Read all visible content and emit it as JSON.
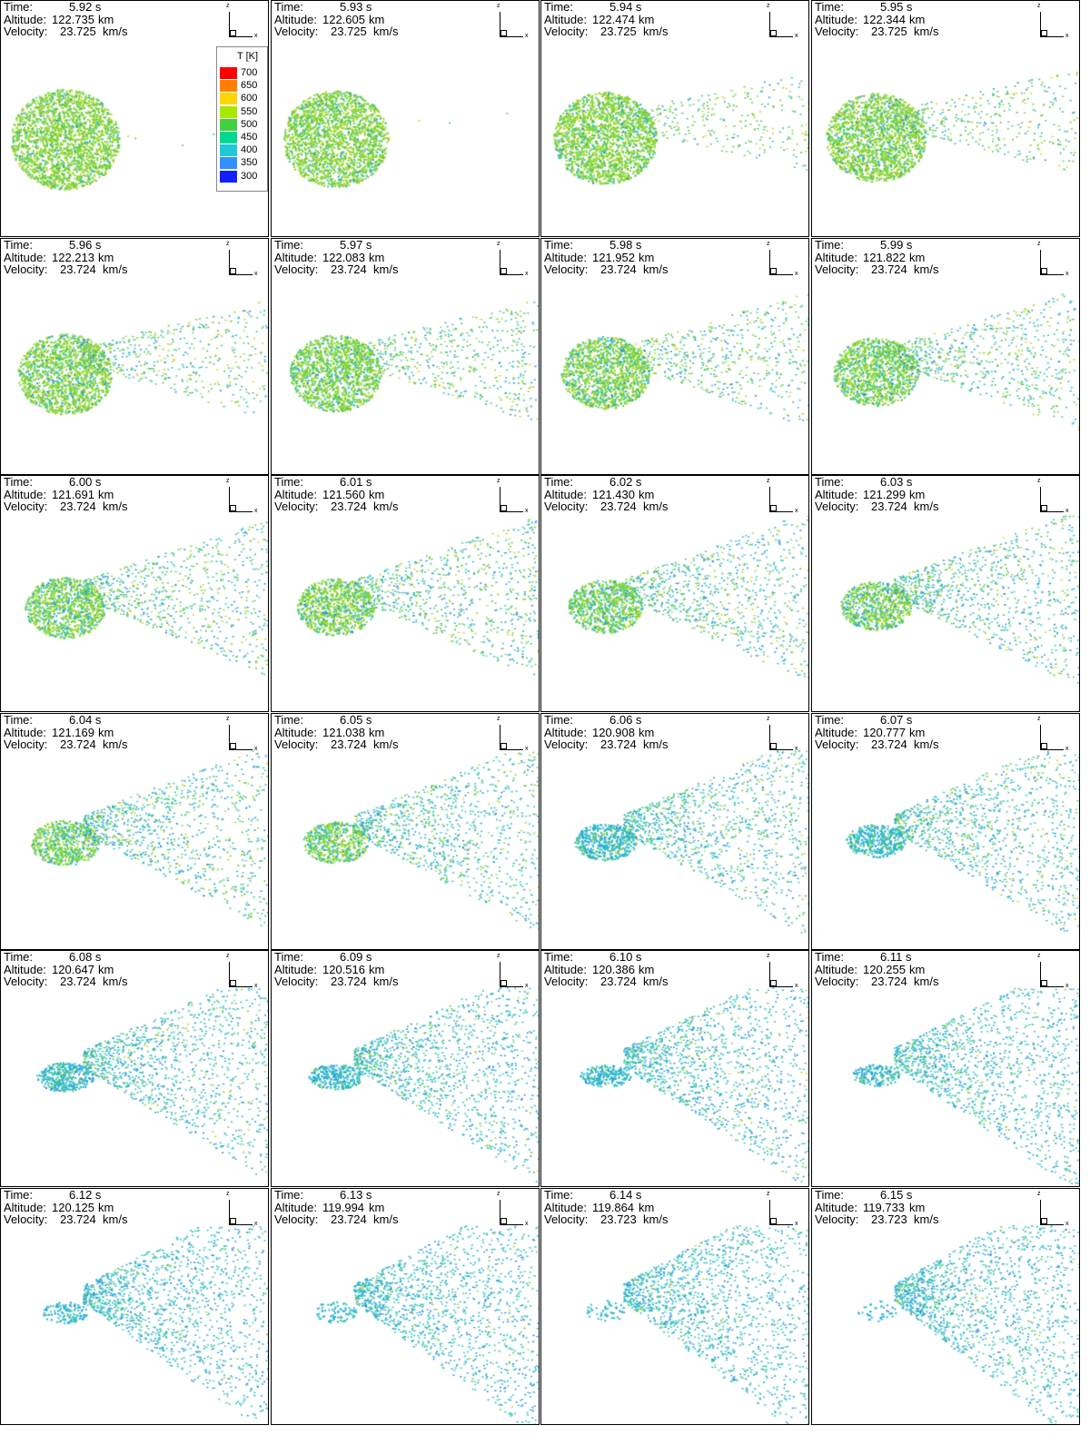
{
  "panels": [
    {
      "time": "5.92 s",
      "altitude": "122.735",
      "velocity": "23.725",
      "stage": 0
    },
    {
      "time": "5.93 s",
      "altitude": "122.605",
      "velocity": "23.725",
      "stage": 0.5
    },
    {
      "time": "5.94 s",
      "altitude": "122.474",
      "velocity": "23.725",
      "stage": 1
    },
    {
      "time": "5.95 s",
      "altitude": "122.344",
      "velocity": "23.725",
      "stage": 1.5
    },
    {
      "time": "5.96 s",
      "altitude": "122.213",
      "velocity": "23.724",
      "stage": 2.5
    },
    {
      "time": "5.97 s",
      "altitude": "122.083",
      "velocity": "23.724",
      "stage": 3
    },
    {
      "time": "5.98 s",
      "altitude": "121.952",
      "velocity": "23.724",
      "stage": 3.5
    },
    {
      "time": "5.99 s",
      "altitude": "121.822",
      "velocity": "23.724",
      "stage": 4
    },
    {
      "time": "6.00 s",
      "altitude": "121.691",
      "velocity": "23.724",
      "stage": 5
    },
    {
      "time": "6.01 s",
      "altitude": "121.560",
      "velocity": "23.724",
      "stage": 5.5
    },
    {
      "time": "6.02 s",
      "altitude": "121.430",
      "velocity": "23.724",
      "stage": 6
    },
    {
      "time": "6.03 s",
      "altitude": "121.299",
      "velocity": "23.724",
      "stage": 6.5
    },
    {
      "time": "6.04 s",
      "altitude": "121.169",
      "velocity": "23.724",
      "stage": 7
    },
    {
      "time": "6.05 s",
      "altitude": "121.038",
      "velocity": "23.724",
      "stage": 7.5
    },
    {
      "time": "6.06 s",
      "altitude": "120.908",
      "velocity": "23.724",
      "stage": 8
    },
    {
      "time": "6.07 s",
      "altitude": "120.777",
      "velocity": "23.724",
      "stage": 8.5
    },
    {
      "time": "6.08 s",
      "altitude": "120.647",
      "velocity": "23.724",
      "stage": 9
    },
    {
      "time": "6.09 s",
      "altitude": "120.516",
      "velocity": "23.724",
      "stage": 9.5
    },
    {
      "time": "6.10 s",
      "altitude": "120.386",
      "velocity": "23.724",
      "stage": 10
    },
    {
      "time": "6.11 s",
      "altitude": "120.255",
      "velocity": "23.724",
      "stage": 10.5
    },
    {
      "time": "6.12 s",
      "altitude": "120.125",
      "velocity": "23.724",
      "stage": 11
    },
    {
      "time": "6.13 s",
      "altitude": "119.994",
      "velocity": "23.724",
      "stage": 11.5
    },
    {
      "time": "6.14 s",
      "altitude": "119.864",
      "velocity": "23.723",
      "stage": 12
    },
    {
      "time": "6.15 s",
      "altitude": "119.733",
      "velocity": "23.723",
      "stage": 12.5
    }
  ],
  "labels": {
    "time": "Time:",
    "altitude": "Altitude:",
    "velocity": "Velocity:",
    "altitude_unit": "km",
    "velocity_unit": "km/s",
    "axis_z": "z",
    "axis_x": "x"
  },
  "legend": {
    "title": "T [K]",
    "ticks": [
      "700",
      "650",
      "600",
      "550",
      "500",
      "450",
      "400",
      "350",
      "300"
    ],
    "colors": [
      "#ff0000",
      "#ff8000",
      "#ffd400",
      "#a8e800",
      "#40d040",
      "#00d890",
      "#20c8d8",
      "#3090ff",
      "#1020ff"
    ]
  }
}
